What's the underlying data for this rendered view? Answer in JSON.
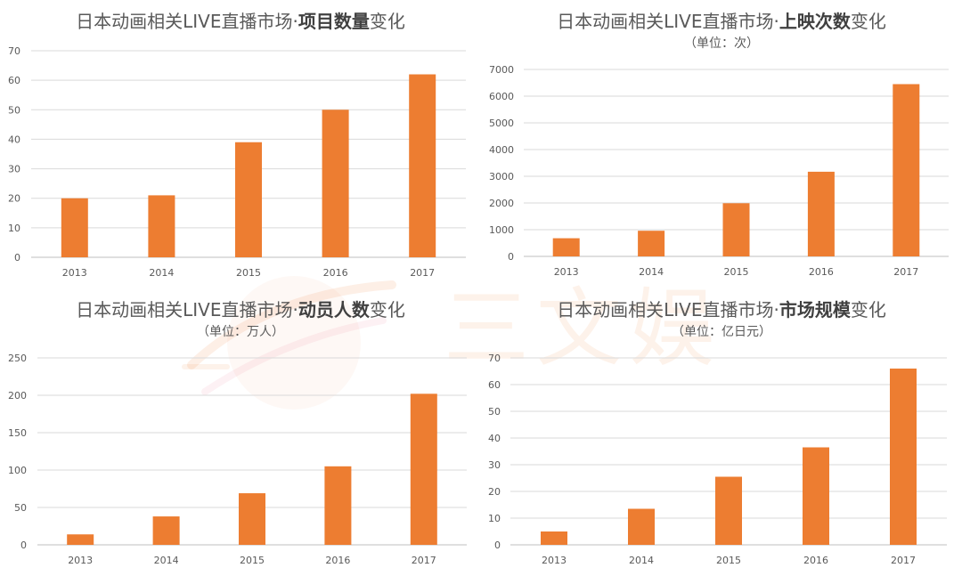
{
  "watermark": "三文娱",
  "colors": {
    "bar": "#ED7D31",
    "text": "#595959",
    "grid": "#D9D9D9"
  },
  "chart_data": [
    {
      "type": "bar",
      "title": {
        "lead": "日本动画相关LIVE直播市场·",
        "emphasis": "项目数量",
        "tail": "变化"
      },
      "categories": [
        "2013",
        "2014",
        "2015",
        "2016",
        "2017"
      ],
      "values": [
        20,
        21,
        39,
        50,
        62
      ],
      "ylim": [
        0,
        70
      ],
      "yticks": [
        0,
        10,
        20,
        30,
        40,
        50,
        60,
        70
      ],
      "grid": true
    },
    {
      "type": "bar",
      "title": {
        "lead": "日本动画相关LIVE直播市场·",
        "emphasis": "上映次数",
        "tail": "变化"
      },
      "subtitle": "（单位：次）",
      "categories": [
        "2013",
        "2014",
        "2015",
        "2016",
        "2017"
      ],
      "values": [
        680,
        960,
        1990,
        3170,
        6450
      ],
      "ylim": [
        0,
        7000
      ],
      "yticks": [
        0,
        1000,
        2000,
        3000,
        4000,
        5000,
        6000,
        7000
      ],
      "grid": true
    },
    {
      "type": "bar",
      "title": {
        "lead": "日本动画相关LIVE直播市场·",
        "emphasis": "动员人数",
        "tail": "变化"
      },
      "subtitle": "（单位：万人）",
      "categories": [
        "2013",
        "2014",
        "2015",
        "2016",
        "2017"
      ],
      "values": [
        14,
        38,
        69,
        105,
        202
      ],
      "ylim": [
        0,
        250
      ],
      "yticks": [
        0,
        50,
        100,
        150,
        200,
        250
      ],
      "grid": true
    },
    {
      "type": "bar",
      "title": {
        "lead": "日本动画相关LIVE直播市场·",
        "emphasis": "市场规模",
        "tail": "变化"
      },
      "subtitle": "（单位：亿日元）",
      "categories": [
        "2013",
        "2014",
        "2015",
        "2016",
        "2017"
      ],
      "values": [
        5,
        13.5,
        25.5,
        36.5,
        66
      ],
      "ylim": [
        0,
        70
      ],
      "yticks": [
        0,
        10,
        20,
        30,
        40,
        50,
        60,
        70
      ],
      "grid": true
    }
  ]
}
